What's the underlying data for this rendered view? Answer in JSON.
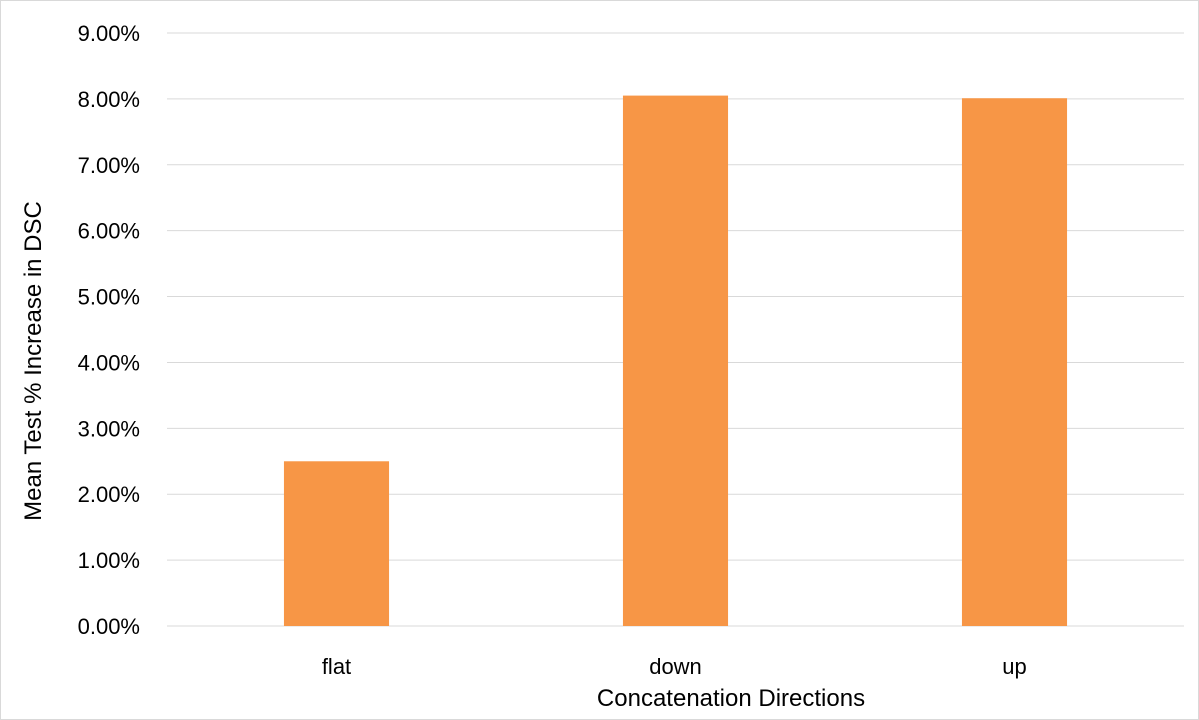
{
  "chart_data": {
    "type": "bar",
    "categories": [
      "flat",
      "down",
      "up"
    ],
    "values": [
      0.025,
      0.0805,
      0.0801
    ],
    "xlabel": "Concatenation Directions",
    "ylabel": "Mean  Test % Increase in DSC",
    "ylim": [
      0,
      0.09
    ],
    "yticks": [
      "0.00%",
      "1.00%",
      "2.00%",
      "3.00%",
      "4.00%",
      "5.00%",
      "6.00%",
      "7.00%",
      "8.00%",
      "9.00%"
    ],
    "grid": true,
    "legend": "none",
    "bar_color": "#F79646",
    "grid_color": "#D9D9D9"
  }
}
